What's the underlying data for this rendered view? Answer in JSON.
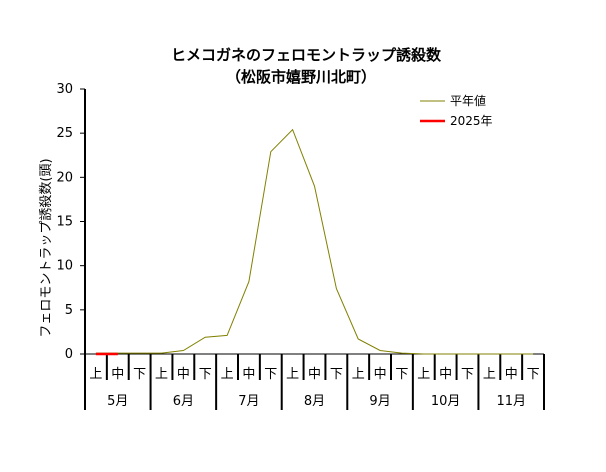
{
  "chart_data": {
    "type": "line",
    "title": "ヒメコガネのフェロモントラップ誘殺数",
    "subtitle": "（松阪市嬉野川北町）",
    "ylabel": "フェロモントラップ誘殺数(頭)",
    "ylim": [
      0,
      30
    ],
    "yticks": [
      "0",
      "5",
      "10",
      "15",
      "20",
      "25",
      "30"
    ],
    "ytick_values": [
      0,
      5,
      10,
      15,
      20,
      25,
      30
    ],
    "grid": false,
    "legend_position": "top-right",
    "periods": [
      "上",
      "中",
      "下",
      "上",
      "中",
      "下",
      "上",
      "中",
      "下",
      "上",
      "中",
      "下",
      "上",
      "中",
      "下",
      "上",
      "中",
      "下",
      "上",
      "中",
      "下"
    ],
    "months": [
      "5月",
      "6月",
      "7月",
      "8月",
      "9月",
      "10月",
      "11月"
    ],
    "series": [
      {
        "name": "平年値",
        "color": "#808000",
        "values": [
          0.1,
          0.1,
          0.1,
          0.1,
          0.4,
          1.9,
          2.1,
          8.2,
          22.9,
          25.4,
          19.0,
          7.4,
          1.7,
          0.4,
          0.1,
          0.0,
          0.0,
          0.0,
          0.0,
          0.0,
          0.0
        ]
      },
      {
        "name": "2025年",
        "color": "#ff0000",
        "values": [
          0,
          0
        ]
      }
    ]
  }
}
